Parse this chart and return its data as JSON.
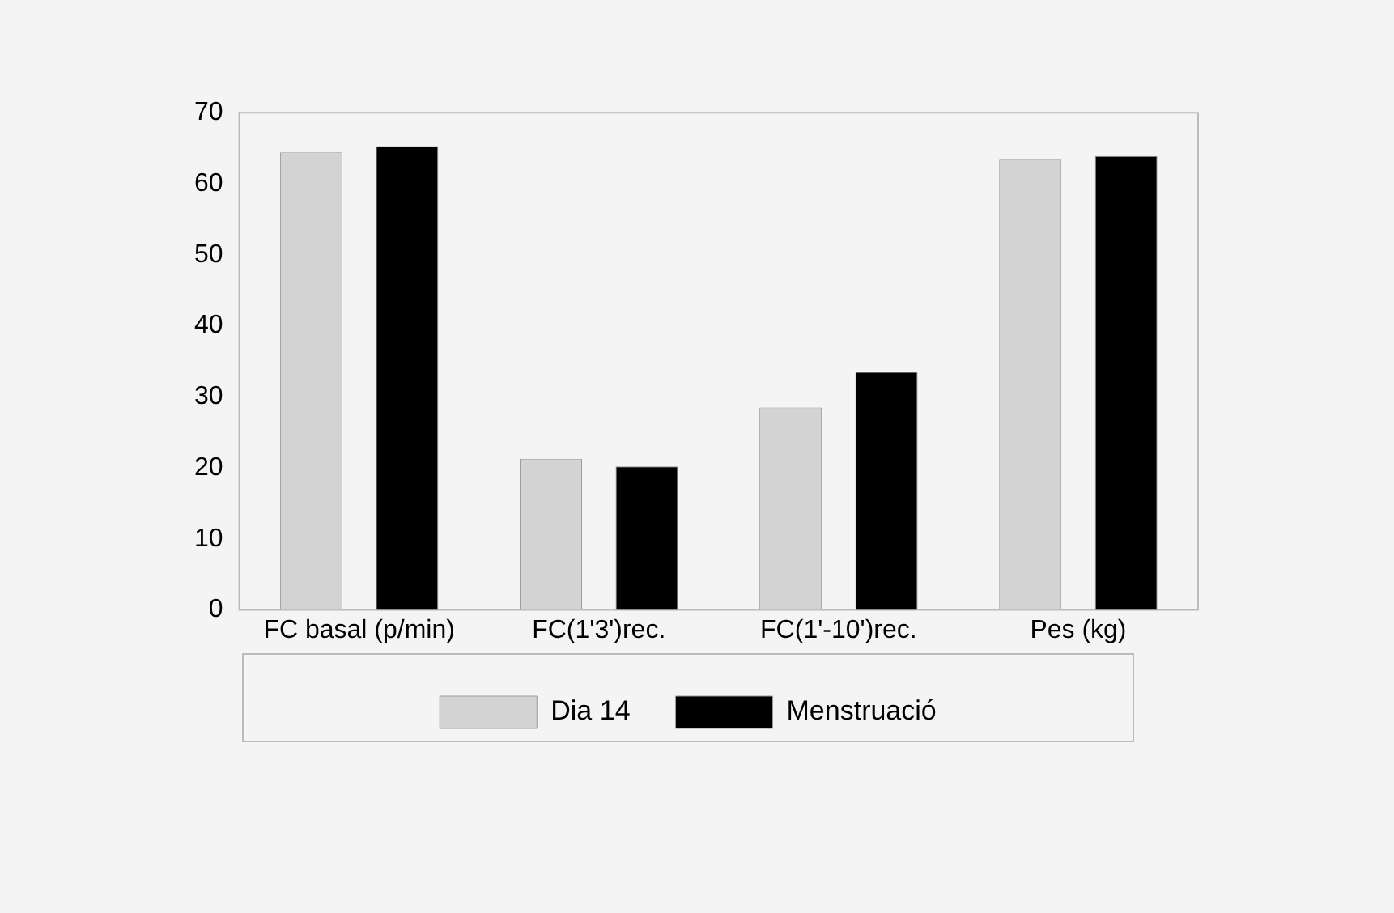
{
  "chart_data": {
    "type": "bar",
    "categories": [
      "FC basal (p/min)",
      "FC(1'3')rec.",
      "FC(1'-10')rec.",
      "Pes (kg)"
    ],
    "series": [
      {
        "name": "Dia 14",
        "color": "#d3d3d3",
        "values": [
          64.4,
          21.3,
          28.5,
          63.4
        ]
      },
      {
        "name": "Menstruació",
        "color": "#000000",
        "values": [
          65.3,
          20.2,
          33.5,
          63.9
        ]
      }
    ],
    "ylim": [
      0,
      70
    ],
    "yticks": [
      0,
      10,
      20,
      30,
      40,
      50,
      60,
      70
    ],
    "grid": false,
    "legend": "bottom"
  }
}
